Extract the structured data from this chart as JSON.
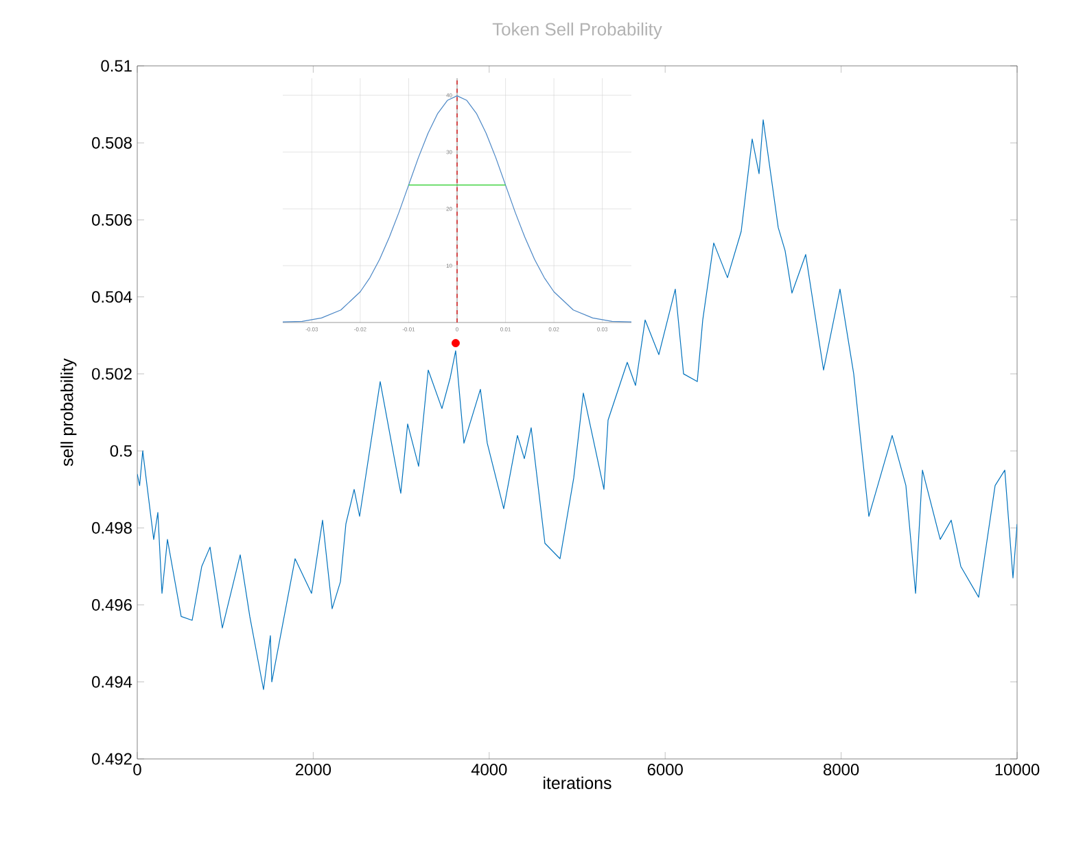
{
  "chart_data": [
    {
      "type": "line",
      "title": "Token Sell Probability",
      "xlabel": "iterations",
      "ylabel": "sell probability",
      "xlim": [
        0,
        10000
      ],
      "ylim": [
        0.492,
        0.51
      ],
      "xticks": [
        0,
        2000,
        4000,
        6000,
        8000,
        10000
      ],
      "yticks": [
        0.492,
        0.494,
        0.496,
        0.498,
        0.5,
        0.502,
        0.504,
        0.506,
        0.508,
        0.51
      ],
      "series": [
        {
          "color": "#0072bd",
          "marker": "none",
          "x": [
            0,
            27,
            62,
            187,
            234,
            281,
            343,
            499,
            624,
            733,
            827,
            967,
            1170,
            1279,
            1435,
            1513,
            1529,
            1794,
            1981,
            2106,
            2215,
            2309,
            2371,
            2465,
            2527,
            2761,
            2995,
            3073,
            3198,
            3307,
            3463,
            3557,
            3619,
            3713,
            3900,
            3978,
            4165,
            4321,
            4399,
            4477,
            4633,
            4805,
            4961,
            5070,
            5304,
            5351,
            5569,
            5663,
            5772,
            5928,
            6115,
            6209,
            6365,
            6427,
            6552,
            6708,
            6864,
            6989,
            7067,
            7114,
            7285,
            7363,
            7441,
            7597,
            7800,
            7987,
            8143,
            8221,
            8315,
            8580,
            8736,
            8846,
            8924,
            9126,
            9251,
            9360,
            9563,
            9750,
            9860,
            9953,
            10000
          ],
          "values": [
            0.4994,
            0.4991,
            0.5,
            0.4977,
            0.4984,
            0.4963,
            0.4977,
            0.4957,
            0.4956,
            0.497,
            0.4975,
            0.4954,
            0.4973,
            0.4957,
            0.4938,
            0.4952,
            0.494,
            0.4972,
            0.4963,
            0.4982,
            0.4959,
            0.4966,
            0.4981,
            0.499,
            0.4983,
            0.5018,
            0.4989,
            0.5007,
            0.4996,
            0.5021,
            0.5011,
            0.5019,
            0.5026,
            0.5002,
            0.5016,
            0.5002,
            0.4985,
            0.5004,
            0.4998,
            0.5006,
            0.4976,
            0.4972,
            0.4993,
            0.5015,
            0.499,
            0.5008,
            0.5023,
            0.5017,
            0.5034,
            0.5025,
            0.5042,
            0.502,
            0.5018,
            0.5034,
            0.5054,
            0.5045,
            0.5057,
            0.5081,
            0.5072,
            0.5086,
            0.5058,
            0.5052,
            0.5041,
            0.5051,
            0.5021,
            0.5042,
            0.502,
            0.5003,
            0.4983,
            0.5004,
            0.4991,
            0.4963,
            0.4995,
            0.4977,
            0.4982,
            0.497,
            0.4962,
            0.4991,
            0.4995,
            0.4967,
            0.4981
          ]
        },
        {
          "type": "scatter",
          "color": "#ff0000",
          "marker": "circle",
          "x": [
            3619
          ],
          "values": [
            0.5028
          ]
        }
      ]
    },
    {
      "type": "line",
      "xlim": [
        -0.036,
        0.036
      ],
      "ylim": [
        0,
        43
      ],
      "xticks": [
        -0.03,
        -0.02,
        -0.01,
        0,
        0.01,
        0.02,
        0.03
      ],
      "yticks": [
        10,
        20,
        30,
        40
      ],
      "grid": true,
      "ref_lines": [
        {
          "axis": "x",
          "value": 0,
          "color": "#d62728",
          "line_style": "dashed"
        }
      ],
      "series": [
        {
          "color": "#4a86c5",
          "x": [
            -0.036,
            -0.032,
            -0.028,
            -0.024,
            -0.02,
            -0.018,
            -0.016,
            -0.014,
            -0.012,
            -0.01,
            -0.008,
            -0.006,
            -0.004,
            -0.002,
            0,
            0.002,
            0.004,
            0.006,
            0.008,
            0.01,
            0.012,
            0.014,
            0.016,
            0.018,
            0.02,
            0.024,
            0.028,
            0.032,
            0.036
          ],
          "values": [
            0.1,
            0.2,
            0.8,
            2.2,
            5.4,
            7.9,
            11.1,
            15.0,
            19.4,
            24.2,
            29.0,
            33.3,
            36.8,
            39.1,
            39.9,
            39.1,
            36.8,
            33.3,
            29.0,
            24.2,
            19.4,
            15.0,
            11.1,
            7.9,
            5.4,
            2.2,
            0.8,
            0.2,
            0.1
          ]
        },
        {
          "color": "#22cc22",
          "x": [
            -0.01,
            0.01
          ],
          "values": [
            24.2,
            24.2
          ]
        }
      ]
    }
  ]
}
